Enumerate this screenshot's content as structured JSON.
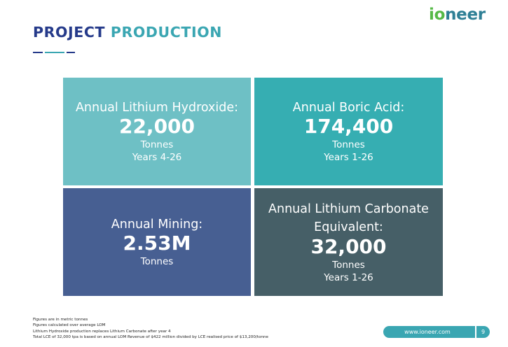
{
  "header": {
    "title_part1": "PROJECT",
    "title_part2": "PRODUCTION",
    "logo_part1": "io",
    "logo_part2": "neer"
  },
  "tiles": [
    {
      "heading": "Annual Lithium Hydroxide:",
      "value": "22,000",
      "unit": "Tonnes",
      "period": "Years 4-26",
      "color": "#6ec0c5"
    },
    {
      "heading": "Annual Boric Acid:",
      "value": "174,400",
      "unit": "Tonnes",
      "period": "Years 1-26",
      "color": "#36aeb2"
    },
    {
      "heading": "Annual Mining:",
      "value": "2.53M",
      "unit": "Tonnes",
      "color": "#475f92"
    },
    {
      "heading": "Annual Lithium Carbonate Equivalent:",
      "value": "32,000",
      "unit": "Tonnes",
      "period": "Years 1-26",
      "color": "#465f67"
    }
  ],
  "footnotes": [
    "Figures are in metric tonnes",
    "Figures calculated over average LOM",
    "Lithium Hydroxide production replaces Lithium Carbonate after year 4",
    "Total LCE of 32,000 tpa is based on annual LOM Revenue of $422 million divided by LCE realised price of $13,200/tonne"
  ],
  "footer": {
    "url": "www.ioneer.com",
    "page_number": "9"
  },
  "colors": {
    "navy": "#253a8a",
    "teal": "#3aa6b2",
    "logo_green": "#56b947"
  }
}
